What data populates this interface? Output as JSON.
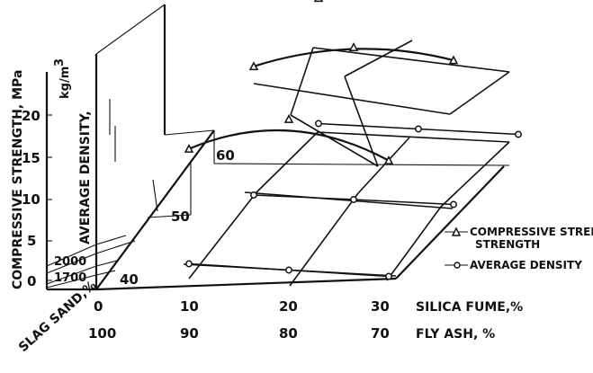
{
  "chart_data": {
    "type": "line",
    "title": "",
    "y_left_label": "COMPRESSIVE STRENGTH, MPa",
    "y_left_ticks": [
      "0",
      "5",
      "10",
      "15",
      "20"
    ],
    "y_left_range": [
      0,
      23
    ],
    "y_density_label": "AVERAGE DENSITY,",
    "y_density_unit": "kg/m",
    "y_density_unit_sup": "3",
    "y_density_ticks": [
      "1700",
      "2000"
    ],
    "depth_label": "SLAG SAND,%",
    "depth_ticks": [
      "40",
      "50",
      "60"
    ],
    "x_label_1": "SILICA FUME,%",
    "x_ticks_1": [
      "0",
      "10",
      "20",
      "30"
    ],
    "x_label_2": "FLY ASH, %",
    "x_ticks_2": [
      "100",
      "90",
      "80",
      "70"
    ],
    "legend": [
      "COMPRESSIVE STRENGTH",
      "AVERAGE DENSITY"
    ],
    "legend_line2": "STRENGTH",
    "strength_series": [
      {
        "slag_sand": 40,
        "silica_fume": [
          10,
          20,
          30
        ],
        "values": [
          16.5,
          21.5,
          16.5
        ]
      },
      {
        "slag_sand": 50,
        "silica_fume": [
          10,
          20,
          30
        ],
        "values": [
          18.5,
          22,
          21
        ]
      },
      {
        "slag_sand": 60,
        "silica_fume": [
          10,
          20,
          30
        ],
        "values": [
          18.5,
          22,
          21.5
        ]
      }
    ],
    "density_series": [
      {
        "slag_sand": 40,
        "silica_fume": [
          10,
          20,
          30
        ],
        "values": [
          2000,
          1990,
          1980
        ]
      },
      {
        "slag_sand": 50,
        "silica_fume": [
          10,
          20,
          30
        ],
        "values": [
          2010,
          2040,
          2060
        ]
      },
      {
        "slag_sand": 60,
        "silica_fume": [
          10,
          20,
          30
        ],
        "values": [
          2080,
          2090,
          2100
        ]
      }
    ]
  }
}
